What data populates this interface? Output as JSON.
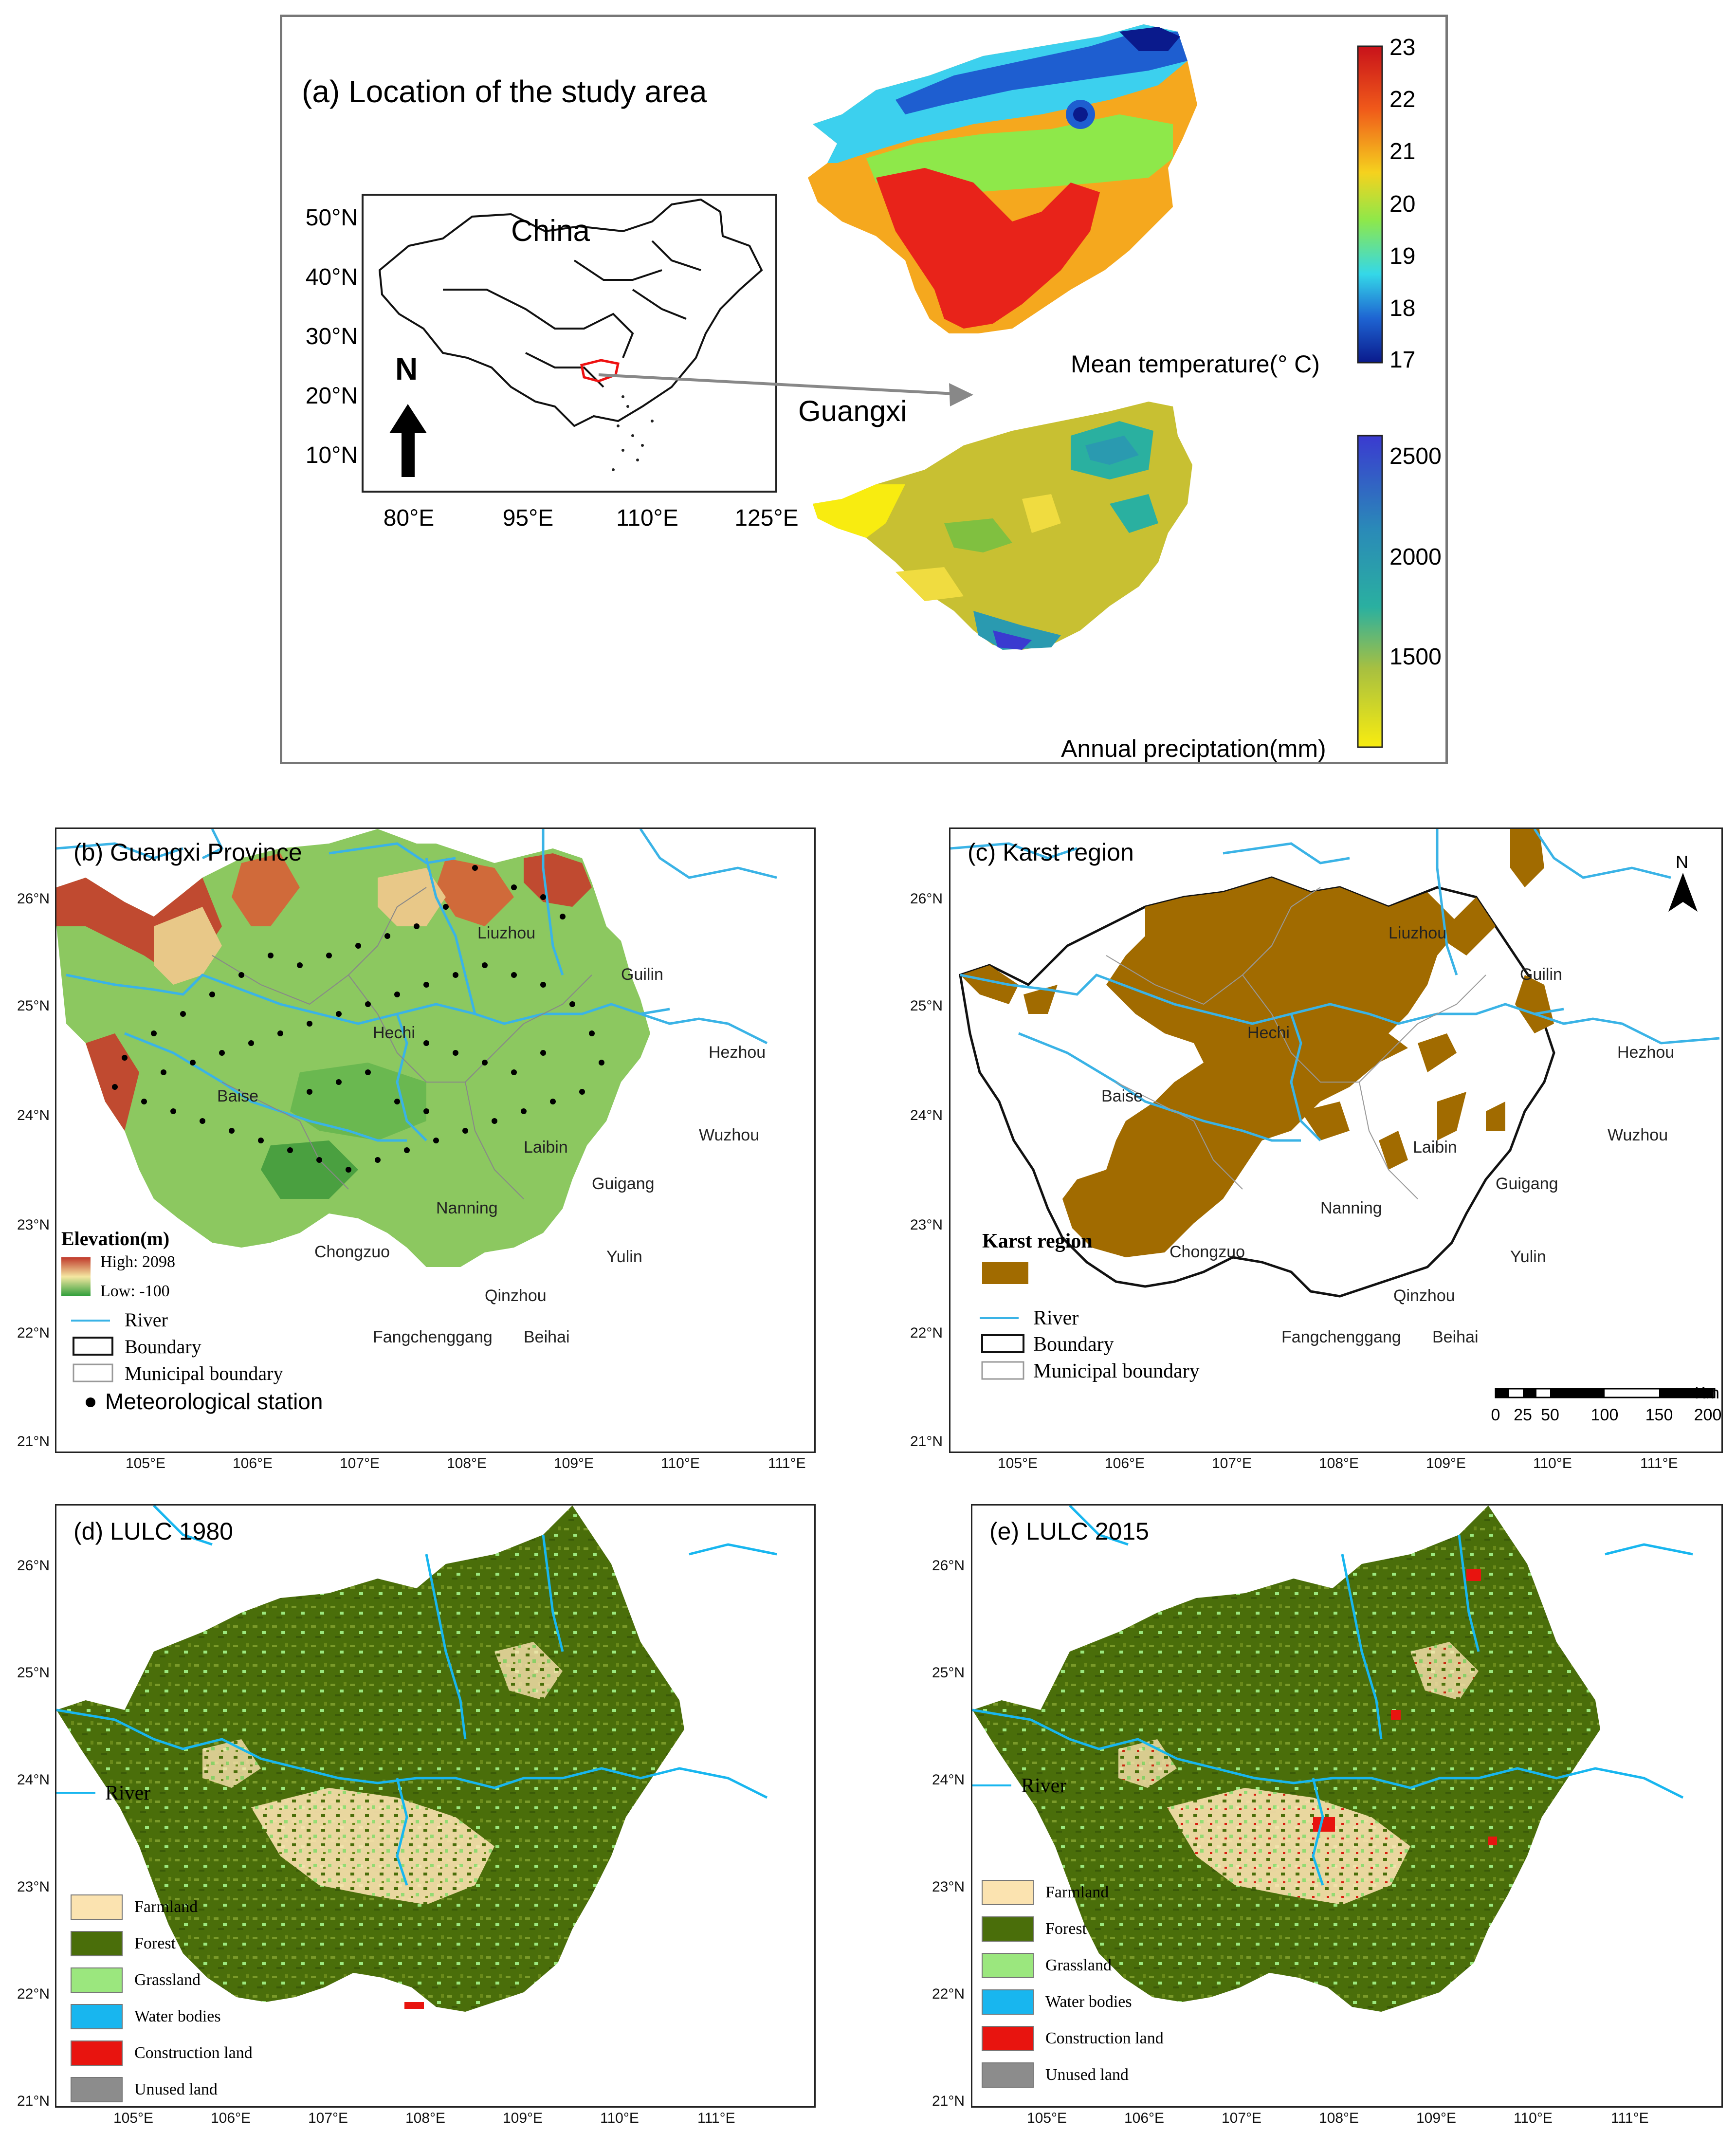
{
  "panel_a": {
    "title": "(a) Location of the study area",
    "inset": {
      "country_label": "China",
      "lat_ticks": [
        "50°N",
        "40°N",
        "30°N",
        "20°N",
        "10°N"
      ],
      "lon_ticks": [
        "80°E",
        "95°E",
        "110°E",
        "125°E"
      ],
      "north_label": "N"
    },
    "arrow_label": "Guangxi",
    "temperature": {
      "title": "Mean temperature(° C)",
      "ticks": [
        "23",
        "22",
        "21",
        "20",
        "19",
        "18",
        "17"
      ]
    },
    "precipitation": {
      "title": "Annual preciptation(mm)",
      "ticks": [
        "2500",
        "2000",
        "1500"
      ]
    }
  },
  "panel_b": {
    "title": "(b) Guangxi Province",
    "lat_ticks": [
      "26°N",
      "25°N",
      "24°N",
      "23°N",
      "22°N",
      "21°N"
    ],
    "lon_ticks": [
      "105°E",
      "106°E",
      "107°E",
      "108°E",
      "109°E",
      "110°E",
      "111°E"
    ],
    "cities": [
      "Liuzhou",
      "Guilin",
      "Hechi",
      "Hezhou",
      "Baise",
      "Wuzhou",
      "Laibin",
      "Guigang",
      "Nanning",
      "Chongzuo",
      "Yulin",
      "Qinzhou",
      "Fangchenggang",
      "Beihai"
    ],
    "legend": {
      "elevation_title": "Elevation(m)",
      "high": "High: 2098",
      "low": "Low: -100",
      "river": "River",
      "boundary": "Boundary",
      "municipal": "Municipal boundary",
      "station": "Meteorological station"
    },
    "colors": {
      "high": "#c0392b",
      "mid": "#f4e7a1",
      "low": "#2e9e3a",
      "river": "#3ab3e6"
    }
  },
  "panel_c": {
    "title": "(c) Karst region",
    "north_label": "N",
    "lat_ticks": [
      "26°N",
      "25°N",
      "24°N",
      "23°N",
      "22°N",
      "21°N"
    ],
    "lon_ticks": [
      "105°E",
      "106°E",
      "107°E",
      "108°E",
      "109°E",
      "110°E",
      "111°E"
    ],
    "cities": [
      "Liuzhou",
      "Guilin",
      "Hechi",
      "Hezhou",
      "Baise",
      "Wuzhou",
      "Laibin",
      "Guigang",
      "Nanning",
      "Chongzuo",
      "Yulin",
      "Qinzhou",
      "Fangchenggang",
      "Beihai"
    ],
    "legend": {
      "karst": "Karst region",
      "river": "River",
      "boundary": "Boundary",
      "municipal": "Municipal boundary"
    },
    "scale": {
      "unit": "Km",
      "ticks": [
        "0",
        "25",
        "50",
        "100",
        "150",
        "200"
      ]
    },
    "colors": {
      "karst": "#a16b00",
      "river": "#3ab3e6"
    }
  },
  "panel_d": {
    "title": "(d) LULC  1980",
    "river_label": "River",
    "lat_ticks": [
      "26°N",
      "25°N",
      "24°N",
      "23°N",
      "22°N",
      "21°N"
    ],
    "lon_ticks": [
      "105°E",
      "106°E",
      "107°E",
      "108°E",
      "109°E",
      "110°E",
      "111°E"
    ],
    "legend": [
      "Farmland",
      "Forest",
      "Grassland",
      "Water bodies",
      "Construction land",
      "Unused land"
    ]
  },
  "panel_e": {
    "title": "(e) LULC  2015",
    "river_label": "River",
    "lat_ticks": [
      "26°N",
      "25°N",
      "24°N",
      "23°N",
      "22°N",
      "21°N"
    ],
    "lon_ticks": [
      "105°E",
      "106°E",
      "107°E",
      "108°E",
      "109°E",
      "110°E",
      "111°E"
    ],
    "legend": [
      "Farmland",
      "Forest",
      "Grassland",
      "Water bodies",
      "Construction land",
      "Unused land"
    ]
  },
  "lulc_colors": [
    "#fbe3b0",
    "#4a6e0a",
    "#9be77e",
    "#18b6ef",
    "#e8140f",
    "#8c8c8c"
  ]
}
